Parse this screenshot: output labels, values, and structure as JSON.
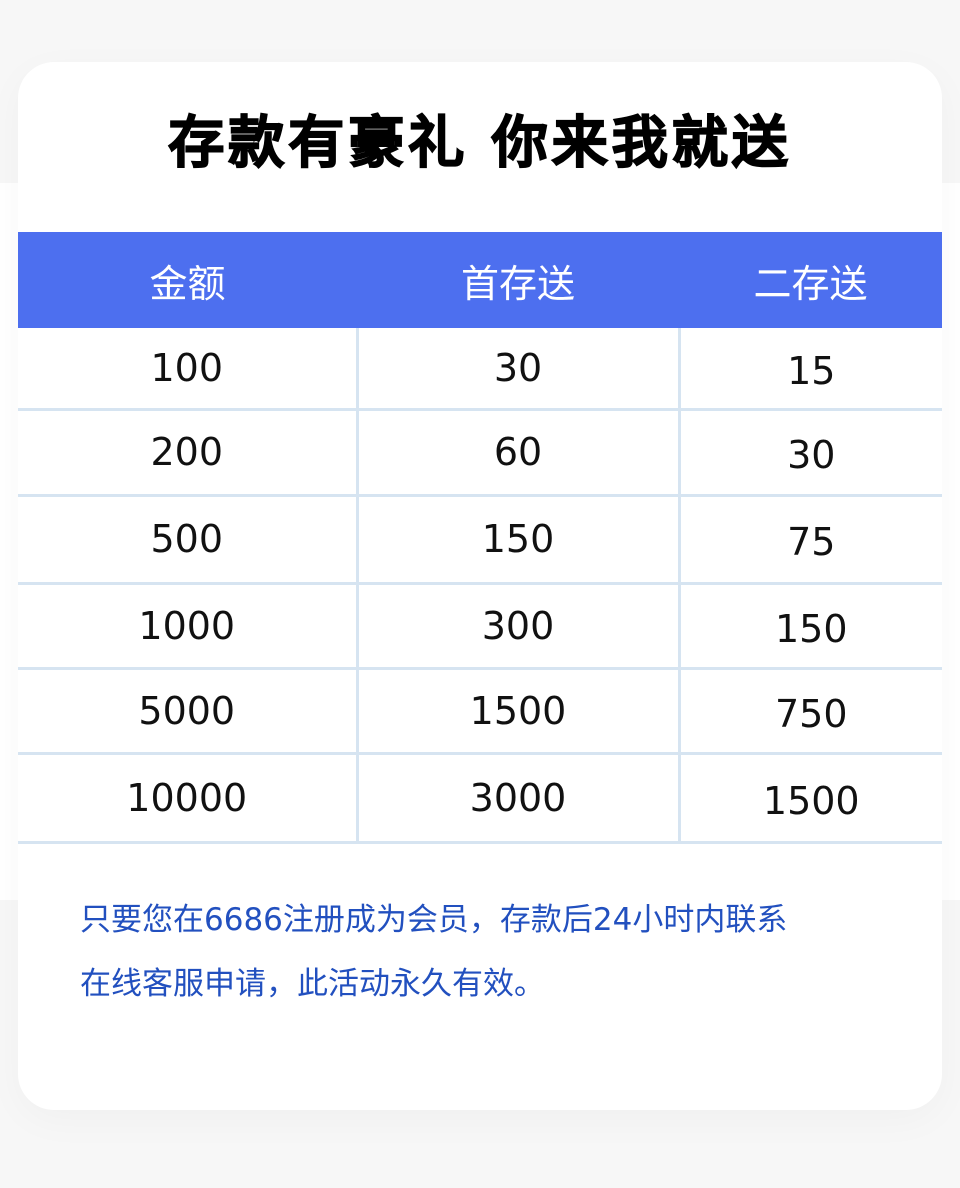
{
  "title": "存款有豪礼 你来我就送",
  "table": {
    "headers": [
      "金额",
      "首存送",
      "二存送"
    ],
    "rows": [
      [
        "100",
        "30",
        "15"
      ],
      [
        "200",
        "60",
        "30"
      ],
      [
        "500",
        "150",
        "75"
      ],
      [
        "1000",
        "300",
        "150"
      ],
      [
        "5000",
        "1500",
        "750"
      ],
      [
        "10000",
        "3000",
        "1500"
      ]
    ]
  },
  "note": [
    "只要您在6686注册成为会员，存款后24小时内联系",
    "在线客服申请，此活动永久有效。"
  ],
  "colors": {
    "header": "#4d6fef",
    "note": "#2250bf",
    "grid": "#d6e4f1"
  }
}
